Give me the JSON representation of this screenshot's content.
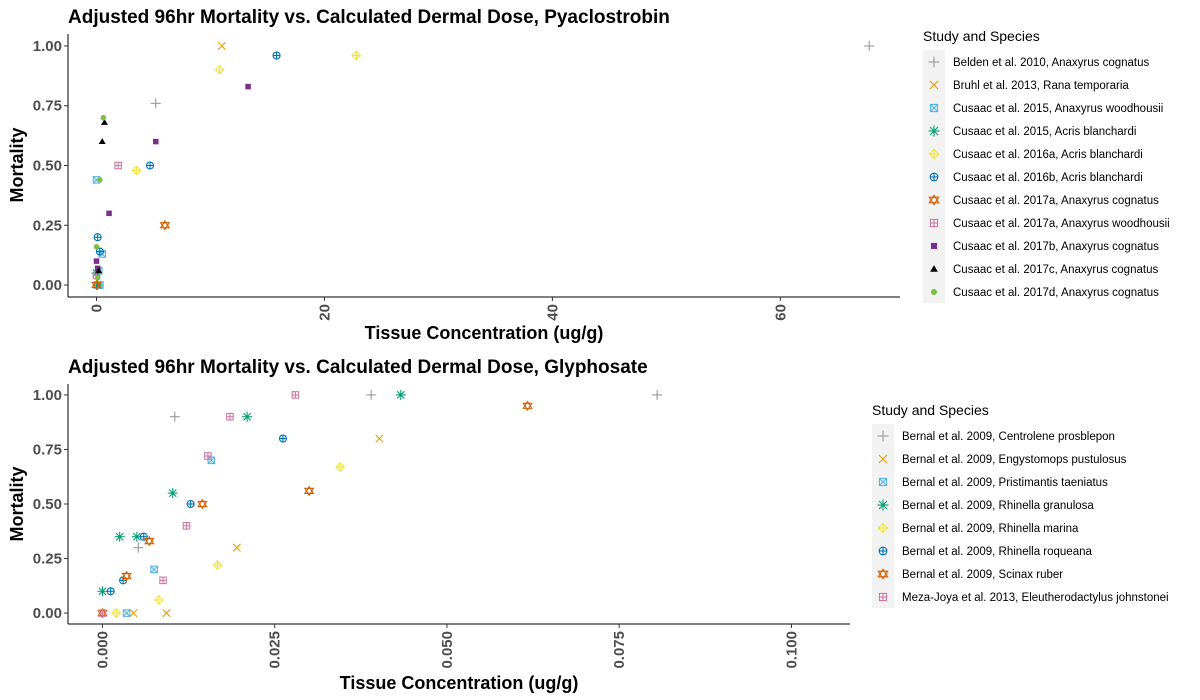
{
  "chart_data": [
    {
      "type": "scatter",
      "title": "Adjusted 96hr Mortality vs. Calculated Dermal Dose, Pyaclostrobin",
      "xlabel": "Tissue Concentration (ug/g)",
      "ylabel": "Mortality",
      "xlim": [
        -2.5,
        70.5
      ],
      "ylim": [
        -0.05,
        1.05
      ],
      "x_ticks": [
        0,
        20,
        40,
        60
      ],
      "x_tick_labels": [
        "0",
        "20",
        "40",
        "60"
      ],
      "y_ticks": [
        0,
        0.25,
        0.5,
        0.75,
        1
      ],
      "y_tick_labels": [
        "0.00",
        "0.25",
        "0.50",
        "0.75",
        "1.00"
      ],
      "grid": false,
      "legend_title": "Study and Species",
      "legend_position": "right",
      "series": [
        {
          "name": "Belden et al. 2010, Anaxyrus cognatus",
          "color": "#999999",
          "marker": "plus",
          "points": [
            [
              5.2,
              0.76
            ],
            [
              67.8,
              1.0
            ]
          ]
        },
        {
          "name": "Bruhl et al. 2013, Rana temporaria",
          "color": "#E69F00",
          "marker": "cross",
          "points": [
            [
              11.0,
              1.0
            ]
          ]
        },
        {
          "name": "Cusaac et al. 2015, Anaxyrus woodhousii",
          "color": "#56B4E9",
          "marker": "square-cross",
          "points": [
            [
              0.0,
              0.44
            ],
            [
              0.2,
              0.06
            ],
            [
              0.3,
              0.0
            ],
            [
              0.5,
              0.13
            ]
          ]
        },
        {
          "name": "Cusaac et al. 2015, Acris blanchardi",
          "color": "#009E73",
          "marker": "asterisk",
          "points": [
            [
              0.0,
              0.05
            ],
            [
              0.1,
              0.0
            ]
          ]
        },
        {
          "name": "Cusaac et al. 2016a, Acris blanchardi",
          "color": "#F0E442",
          "marker": "diamond-plus",
          "points": [
            [
              3.5,
              0.48
            ],
            [
              10.8,
              0.9
            ],
            [
              22.8,
              0.96
            ]
          ]
        },
        {
          "name": "Cusaac et al. 2016b, Acris blanchardi",
          "color": "#0072B2",
          "marker": "circle-plus",
          "points": [
            [
              0.1,
              0.2
            ],
            [
              0.3,
              0.14
            ],
            [
              4.7,
              0.5
            ],
            [
              15.8,
              0.96
            ]
          ]
        },
        {
          "name": "Cusaac et al. 2017a, Anaxyrus cognatus",
          "color": "#D55E00",
          "marker": "star-triangles",
          "points": [
            [
              0.0,
              0.0
            ],
            [
              6.0,
              0.25
            ]
          ]
        },
        {
          "name": "Cusaac et al. 2017a, Anaxyrus woodhousii",
          "color": "#CC79A7",
          "marker": "square-plus",
          "points": [
            [
              0.0,
              0.04
            ],
            [
              1.9,
              0.5
            ]
          ]
        },
        {
          "name": "Cusaac et al. 2017b, Anaxyrus cognatus",
          "color": "#7B2D8E",
          "marker": "square",
          "points": [
            [
              0.0,
              0.1
            ],
            [
              0.1,
              0.07
            ],
            [
              1.1,
              0.3
            ],
            [
              5.2,
              0.6
            ],
            [
              13.3,
              0.83
            ]
          ]
        },
        {
          "name": "Cusaac et al. 2017c, Anaxyrus cognatus",
          "color": "#000000",
          "marker": "triangle",
          "points": [
            [
              0.2,
              0.06
            ],
            [
              0.5,
              0.6
            ],
            [
              0.7,
              0.68
            ]
          ]
        },
        {
          "name": "Cusaac et al. 2017d, Anaxyrus cognatus",
          "color": "#7AC142",
          "marker": "circle",
          "points": [
            [
              0.0,
              0.16
            ],
            [
              0.1,
              0.03
            ],
            [
              0.3,
              0.44
            ],
            [
              0.6,
              0.7
            ]
          ]
        }
      ]
    },
    {
      "type": "scatter",
      "title": "Adjusted 96hr Mortality vs. Calculated Dermal Dose, Glyphosate",
      "xlabel": "Tissue Concentration (ug/g)",
      "ylabel": "Mortality",
      "xlim": [
        -0.005,
        0.1085
      ],
      "ylim": [
        -0.05,
        1.05
      ],
      "x_ticks": [
        0,
        0.025,
        0.05,
        0.075,
        0.1
      ],
      "x_tick_labels": [
        "0.000",
        "0.025",
        "0.050",
        "0.075",
        "0.100"
      ],
      "y_ticks": [
        0,
        0.25,
        0.5,
        0.75,
        1
      ],
      "y_tick_labels": [
        "0.00",
        "0.25",
        "0.50",
        "0.75",
        "1.00"
      ],
      "grid": false,
      "legend_title": "Study and Species",
      "legend_position": "right",
      "series": [
        {
          "name": "Bernal et al. 2009, Centrolene prosblepon",
          "color": "#999999",
          "marker": "plus",
          "points": [
            [
              0.0052,
              0.3
            ],
            [
              0.0105,
              0.9
            ],
            [
              0.039,
              1.0
            ],
            [
              0.0805,
              1.0
            ]
          ]
        },
        {
          "name": "Bernal et al. 2009, Engystomops pustulosus",
          "color": "#E69F00",
          "marker": "cross",
          "points": [
            [
              0.0045,
              0.0
            ],
            [
              0.0093,
              0.0
            ],
            [
              0.0195,
              0.3
            ],
            [
              0.0402,
              0.8
            ]
          ]
        },
        {
          "name": "Bernal et al. 2009, Pristimantis taeniatus",
          "color": "#56B4E9",
          "marker": "square-cross",
          "points": [
            [
              0.0035,
              0.0
            ],
            [
              0.0075,
              0.2
            ],
            [
              0.0158,
              0.7
            ]
          ]
        },
        {
          "name": "Bernal et al. 2009, Rhinella granulosa",
          "color": "#009E73",
          "marker": "asterisk",
          "points": [
            [
              0.0,
              0.1
            ],
            [
              0.0025,
              0.35
            ],
            [
              0.005,
              0.35
            ],
            [
              0.0102,
              0.55
            ],
            [
              0.021,
              0.9
            ],
            [
              0.0433,
              1.0
            ]
          ]
        },
        {
          "name": "Bernal et al. 2009, Rhinella marina",
          "color": "#F0E442",
          "marker": "diamond-plus",
          "points": [
            [
              0.002,
              0.0
            ],
            [
              0.0082,
              0.06
            ],
            [
              0.0167,
              0.22
            ],
            [
              0.0345,
              0.67
            ]
          ]
        },
        {
          "name": "Bernal et al. 2009, Rhinella roqueana",
          "color": "#0072B2",
          "marker": "circle-plus",
          "points": [
            [
              0.0012,
              0.1
            ],
            [
              0.003,
              0.15
            ],
            [
              0.006,
              0.35
            ],
            [
              0.0128,
              0.5
            ],
            [
              0.0262,
              0.8
            ]
          ]
        },
        {
          "name": "Bernal et al. 2009, Scinax ruber",
          "color": "#D55E00",
          "marker": "star-triangles",
          "points": [
            [
              0.0,
              0.0
            ],
            [
              0.0035,
              0.17
            ],
            [
              0.0068,
              0.33
            ],
            [
              0.0145,
              0.5
            ],
            [
              0.03,
              0.56
            ],
            [
              0.0617,
              0.95
            ]
          ]
        },
        {
          "name": "Meza-Joya et al. 2013, Eleutherodactylus johnstonei",
          "color": "#CC79A7",
          "marker": "square-plus",
          "points": [
            [
              0.0,
              0.0
            ],
            [
              0.0088,
              0.15
            ],
            [
              0.0122,
              0.4
            ],
            [
              0.0153,
              0.72
            ],
            [
              0.0185,
              0.9
            ],
            [
              0.028,
              1.0
            ]
          ]
        }
      ]
    }
  ]
}
